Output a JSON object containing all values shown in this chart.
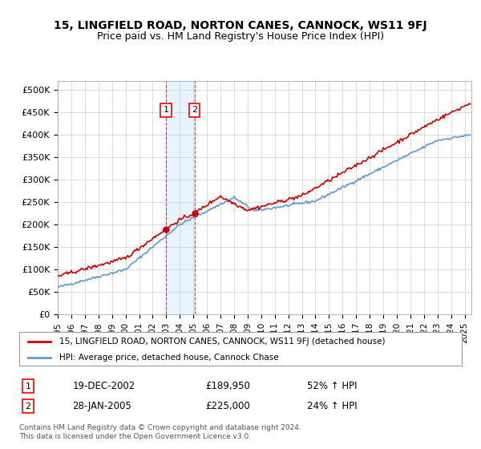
{
  "title": "15, LINGFIELD ROAD, NORTON CANES, CANNOCK, WS11 9FJ",
  "subtitle": "Price paid vs. HM Land Registry's House Price Index (HPI)",
  "ylabel_ticks": [
    "£0",
    "£50K",
    "£100K",
    "£150K",
    "£200K",
    "£250K",
    "£300K",
    "£350K",
    "£400K",
    "£450K",
    "£500K"
  ],
  "ytick_values": [
    0,
    50000,
    100000,
    150000,
    200000,
    250000,
    300000,
    350000,
    400000,
    450000,
    500000
  ],
  "ylim": [
    0,
    520000
  ],
  "xlim_start": 1995.0,
  "xlim_end": 2025.5,
  "red_line_color": "#cc0000",
  "blue_line_color": "#6699cc",
  "shade_color": "#ddeeff",
  "transaction1_x": 2002.97,
  "transaction1_y": 189950,
  "transaction2_x": 2005.08,
  "transaction2_y": 225000,
  "transaction1_label": "19-DEC-2002",
  "transaction2_label": "28-JAN-2005",
  "transaction1_price": "£189,950",
  "transaction2_price": "£225,000",
  "transaction1_hpi": "52% ↑ HPI",
  "transaction2_hpi": "24% ↑ HPI",
  "legend_red": "15, LINGFIELD ROAD, NORTON CANES, CANNOCK, WS11 9FJ (detached house)",
  "legend_blue": "HPI: Average price, detached house, Cannock Chase",
  "footer": "Contains HM Land Registry data © Crown copyright and database right 2024.\nThis data is licensed under the Open Government Licence v3.0.",
  "background_color": "#ffffff",
  "grid_color": "#cccccc"
}
